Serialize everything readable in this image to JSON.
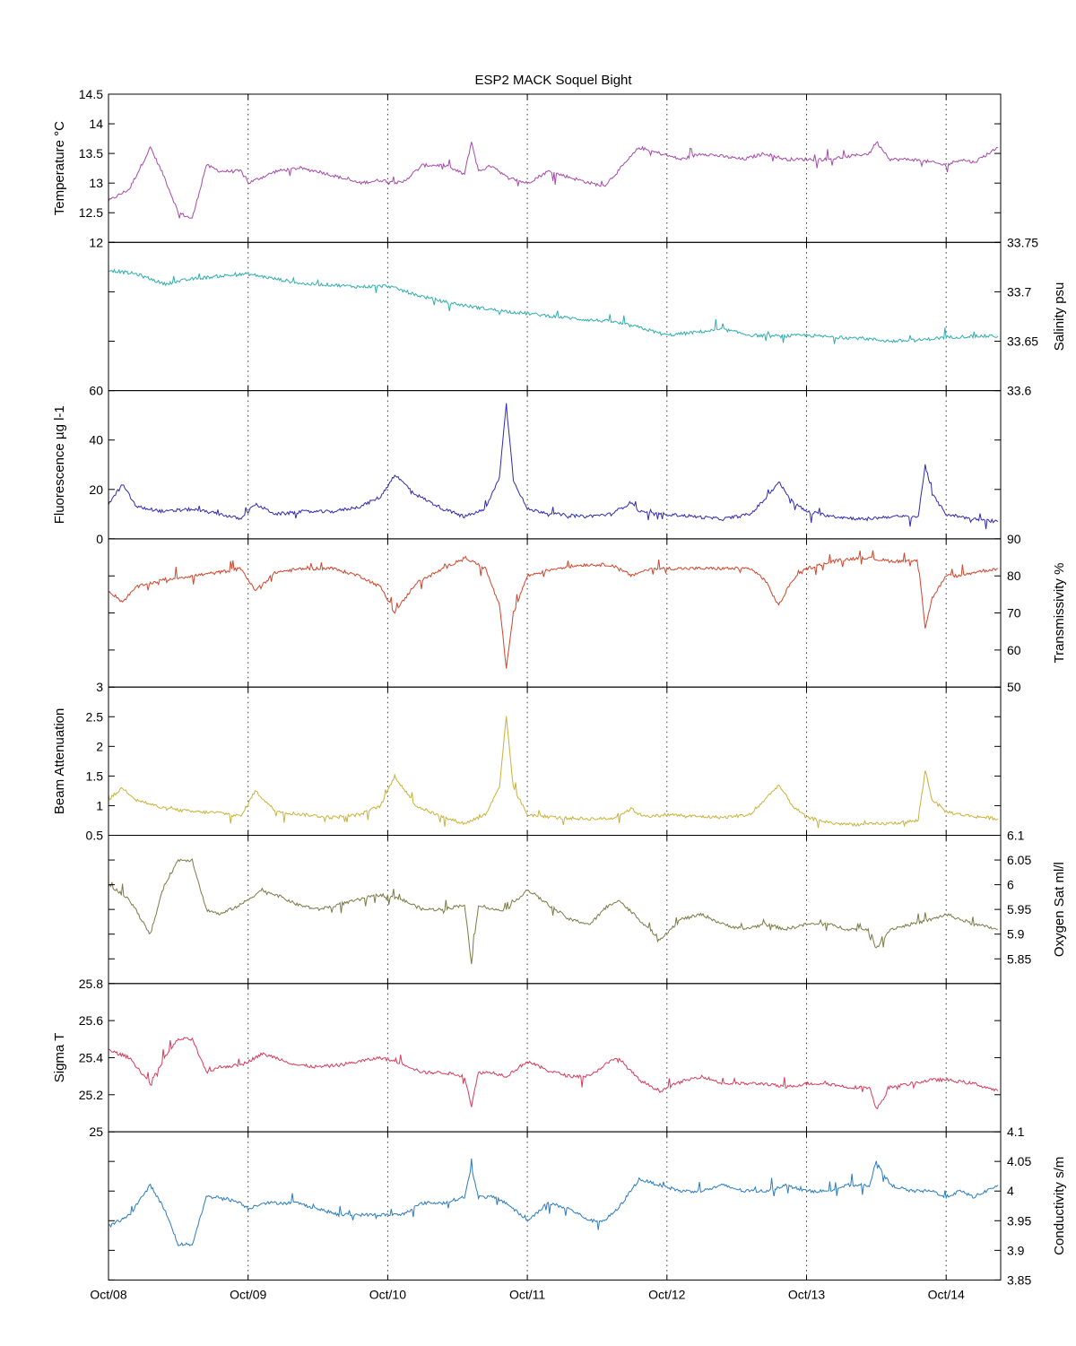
{
  "chart_data": {
    "type": "line",
    "title": "ESP2 MACK  Soquel Bight",
    "x_ticks": [
      "Oct/08",
      "Oct/09",
      "Oct/10",
      "Oct/11",
      "Oct/12",
      "Oct/13",
      "Oct/14"
    ],
    "x_range": [
      "Oct/08 00:00",
      "Oct/14 09:00"
    ],
    "grid": "vertical dotted at each day",
    "panels": [
      {
        "name": "Temperature",
        "ylabel": "Temperature °C",
        "axis_side": "left",
        "color": "#a54aa8",
        "ylim": [
          12,
          14.5
        ],
        "yticks": [
          "12",
          "12.5",
          "13",
          "13.5",
          "14",
          "14.5"
        ],
        "x": [
          0,
          0.15,
          0.3,
          0.4,
          0.5,
          0.6,
          0.7,
          0.8,
          0.95,
          1,
          1.1,
          1.2,
          1.35,
          1.5,
          1.65,
          1.8,
          1.95,
          2.1,
          2.25,
          2.4,
          2.55,
          2.6,
          2.65,
          2.75,
          2.85,
          3,
          3.15,
          3.3,
          3.45,
          3.55,
          3.65,
          3.8,
          3.95,
          4.1,
          4.25,
          4.4,
          4.55,
          4.7,
          4.85,
          5,
          5.15,
          5.3,
          5.45,
          5.5,
          5.6,
          5.75,
          5.9,
          6,
          6.1,
          6.2,
          6.37
        ],
        "values": [
          12.7,
          12.9,
          13.6,
          13.1,
          12.5,
          12.4,
          13.3,
          13.2,
          13.2,
          13.0,
          13.1,
          13.2,
          13.25,
          13.2,
          13.1,
          13.0,
          13.05,
          13.0,
          13.3,
          13.3,
          13.15,
          13.7,
          13.2,
          13.3,
          13.1,
          13.0,
          13.2,
          13.1,
          13.0,
          12.95,
          13.2,
          13.6,
          13.5,
          13.4,
          13.5,
          13.45,
          13.4,
          13.5,
          13.4,
          13.4,
          13.4,
          13.45,
          13.5,
          13.7,
          13.4,
          13.4,
          13.35,
          13.3,
          13.4,
          13.35,
          13.6
        ]
      },
      {
        "name": "Salinity",
        "ylabel": "Salinity psu",
        "axis_side": "right",
        "color": "#2fadad",
        "ylim": [
          33.6,
          33.75
        ],
        "yticks": [
          "33.6",
          "33.65",
          "33.7",
          "33.75"
        ],
        "x": [
          0,
          0.2,
          0.4,
          0.6,
          0.8,
          1,
          1.2,
          1.4,
          1.6,
          1.8,
          2,
          2.2,
          2.4,
          2.6,
          2.8,
          3,
          3.2,
          3.4,
          3.6,
          3.8,
          4,
          4.2,
          4.4,
          4.6,
          4.8,
          5,
          5.2,
          5.4,
          5.6,
          5.8,
          6,
          6.2,
          6.37
        ],
        "values": [
          33.722,
          33.718,
          33.708,
          33.713,
          33.716,
          33.718,
          33.713,
          33.708,
          33.707,
          33.705,
          33.706,
          33.697,
          33.69,
          33.685,
          33.681,
          33.678,
          33.675,
          33.672,
          33.67,
          33.664,
          33.656,
          33.659,
          33.662,
          33.656,
          33.655,
          33.656,
          33.654,
          33.653,
          33.65,
          33.651,
          33.654,
          33.655,
          33.655
        ]
      },
      {
        "name": "Fluorescence",
        "ylabel": "Fluorescence µg l-1",
        "axis_side": "left",
        "color": "#2f2ab0",
        "ylim": [
          0,
          60
        ],
        "yticks": [
          "0",
          "20",
          "40",
          "60"
        ],
        "x": [
          0,
          0.1,
          0.2,
          0.4,
          0.6,
          0.8,
          0.95,
          1.05,
          1.2,
          1.4,
          1.6,
          1.8,
          1.95,
          2.05,
          2.2,
          2.4,
          2.55,
          2.7,
          2.8,
          2.85,
          2.9,
          3,
          3.2,
          3.4,
          3.6,
          3.75,
          3.8,
          3.9,
          4,
          4.2,
          4.4,
          4.6,
          4.7,
          4.8,
          4.9,
          5,
          5.2,
          5.4,
          5.6,
          5.7,
          5.8,
          5.85,
          5.9,
          6,
          6.1,
          6.2,
          6.37
        ],
        "values": [
          14,
          22,
          13,
          11,
          12,
          10,
          8,
          14,
          10,
          11,
          11,
          13,
          17,
          26,
          18,
          12,
          9,
          12,
          25,
          55,
          24,
          12,
          10,
          9,
          10,
          15,
          11,
          10,
          10,
          9,
          8,
          10,
          16,
          23,
          15,
          11,
          9,
          8,
          9,
          9,
          9,
          30,
          18,
          10,
          9,
          8,
          7
        ]
      },
      {
        "name": "Transmissivity",
        "ylabel": "Transmissivity %",
        "axis_side": "right",
        "color": "#d2432a",
        "ylim": [
          50,
          90
        ],
        "yticks": [
          "50",
          "60",
          "70",
          "80",
          "90"
        ],
        "x": [
          0,
          0.1,
          0.2,
          0.4,
          0.6,
          0.8,
          0.95,
          1.05,
          1.2,
          1.4,
          1.6,
          1.8,
          1.95,
          2.05,
          2.2,
          2.4,
          2.55,
          2.7,
          2.8,
          2.85,
          2.9,
          3,
          3.2,
          3.4,
          3.6,
          3.75,
          3.8,
          3.9,
          4,
          4.2,
          4.4,
          4.6,
          4.7,
          4.8,
          4.9,
          5,
          5.2,
          5.4,
          5.6,
          5.7,
          5.8,
          5.85,
          5.9,
          6,
          6.1,
          6.2,
          6.37
        ],
        "values": [
          76,
          73,
          77,
          79,
          80,
          81,
          82,
          76,
          81,
          82,
          82,
          80,
          77,
          70,
          78,
          82,
          85,
          82,
          72,
          55,
          70,
          80,
          82,
          83,
          83,
          80,
          81,
          82,
          82,
          82,
          82,
          82,
          79,
          72,
          79,
          82,
          84,
          85,
          84,
          84,
          84,
          66,
          74,
          80,
          80,
          81,
          82
        ]
      },
      {
        "name": "Beam Attenuation",
        "ylabel": "Beam Attenuation",
        "axis_side": "left",
        "color": "#c9b23a",
        "ylim": [
          0.5,
          3
        ],
        "yticks": [
          "0.5",
          "1",
          "1.5",
          "2",
          "2.5",
          "3"
        ],
        "x": [
          0,
          0.1,
          0.2,
          0.4,
          0.6,
          0.8,
          0.95,
          1.05,
          1.2,
          1.4,
          1.6,
          1.8,
          1.95,
          2.05,
          2.2,
          2.4,
          2.55,
          2.7,
          2.8,
          2.85,
          2.9,
          3,
          3.2,
          3.4,
          3.6,
          3.75,
          3.8,
          3.9,
          4,
          4.2,
          4.4,
          4.6,
          4.7,
          4.8,
          4.9,
          5,
          5.2,
          5.4,
          5.6,
          5.7,
          5.8,
          5.85,
          5.9,
          6,
          6.1,
          6.2,
          6.37
        ],
        "values": [
          1.1,
          1.3,
          1.1,
          0.95,
          0.9,
          0.88,
          0.82,
          1.25,
          0.9,
          0.85,
          0.8,
          0.85,
          1.0,
          1.5,
          1.0,
          0.8,
          0.7,
          0.85,
          1.3,
          2.5,
          1.3,
          0.85,
          0.8,
          0.78,
          0.78,
          0.95,
          0.85,
          0.82,
          0.85,
          0.82,
          0.8,
          0.85,
          1.1,
          1.35,
          1.0,
          0.8,
          0.7,
          0.68,
          0.7,
          0.72,
          0.75,
          1.6,
          1.1,
          0.9,
          0.85,
          0.82,
          0.78
        ]
      },
      {
        "name": "Oxygen Sat",
        "ylabel": "Oxygen Sat ml/l",
        "axis_side": "right",
        "color": "#7b7a45",
        "ylim": [
          5.8,
          6.1
        ],
        "yticks": [
          "5.85",
          "5.9",
          "5.95",
          "6",
          "6.05",
          "6.1"
        ],
        "x": [
          0,
          0.15,
          0.3,
          0.4,
          0.5,
          0.6,
          0.7,
          0.8,
          0.95,
          1,
          1.1,
          1.2,
          1.35,
          1.5,
          1.65,
          1.8,
          1.95,
          2.1,
          2.25,
          2.4,
          2.55,
          2.6,
          2.65,
          2.75,
          2.85,
          3,
          3.15,
          3.3,
          3.45,
          3.55,
          3.65,
          3.8,
          3.95,
          4.1,
          4.25,
          4.4,
          4.55,
          4.7,
          4.85,
          5,
          5.15,
          5.3,
          5.45,
          5.5,
          5.6,
          5.75,
          5.9,
          6,
          6.1,
          6.2,
          6.37
        ],
        "values": [
          6.0,
          5.97,
          5.9,
          6.0,
          6.05,
          6.05,
          5.95,
          5.94,
          5.96,
          5.97,
          5.99,
          5.98,
          5.96,
          5.95,
          5.96,
          5.97,
          5.98,
          5.97,
          5.95,
          5.95,
          5.96,
          5.84,
          5.96,
          5.95,
          5.95,
          5.99,
          5.96,
          5.93,
          5.92,
          5.95,
          5.97,
          5.93,
          5.89,
          5.93,
          5.94,
          5.92,
          5.91,
          5.92,
          5.91,
          5.92,
          5.92,
          5.91,
          5.91,
          5.87,
          5.91,
          5.92,
          5.93,
          5.94,
          5.93,
          5.92,
          5.91
        ]
      },
      {
        "name": "Sigma T",
        "ylabel": "Sigma T",
        "axis_side": "left",
        "color": "#d83a5a",
        "ylim": [
          25,
          25.8
        ],
        "yticks": [
          "25",
          "25.2",
          "25.4",
          "25.6",
          "25.8"
        ],
        "x": [
          0,
          0.15,
          0.3,
          0.4,
          0.5,
          0.6,
          0.7,
          0.8,
          0.95,
          1,
          1.1,
          1.2,
          1.35,
          1.5,
          1.65,
          1.8,
          1.95,
          2.1,
          2.25,
          2.4,
          2.55,
          2.6,
          2.65,
          2.75,
          2.85,
          3,
          3.15,
          3.3,
          3.45,
          3.55,
          3.65,
          3.8,
          3.95,
          4.1,
          4.25,
          4.4,
          4.55,
          4.7,
          4.85,
          5,
          5.15,
          5.3,
          5.45,
          5.5,
          5.6,
          5.75,
          5.9,
          6,
          6.1,
          6.2,
          6.37
        ],
        "values": [
          25.44,
          25.4,
          25.26,
          25.4,
          25.5,
          25.5,
          25.32,
          25.35,
          25.36,
          25.38,
          25.42,
          25.4,
          25.36,
          25.35,
          25.36,
          25.38,
          25.4,
          25.37,
          25.32,
          25.32,
          25.3,
          25.14,
          25.32,
          25.32,
          25.3,
          25.38,
          25.33,
          25.3,
          25.3,
          25.36,
          25.4,
          25.28,
          25.22,
          25.27,
          25.3,
          25.26,
          25.26,
          25.26,
          25.24,
          25.26,
          25.26,
          25.24,
          25.24,
          25.12,
          25.24,
          25.26,
          25.28,
          25.28,
          25.27,
          25.26,
          25.22
        ]
      },
      {
        "name": "Conductivity",
        "ylabel": "Conductivity s/m",
        "axis_side": "right",
        "color": "#2b7bc0",
        "ylim": [
          3.85,
          4.1
        ],
        "yticks": [
          "3.85",
          "3.9",
          "3.95",
          "4",
          "4.05",
          "4.1"
        ],
        "x": [
          0,
          0.15,
          0.3,
          0.4,
          0.5,
          0.6,
          0.7,
          0.8,
          0.95,
          1,
          1.1,
          1.2,
          1.35,
          1.5,
          1.65,
          1.8,
          1.95,
          2.1,
          2.25,
          2.4,
          2.55,
          2.6,
          2.65,
          2.75,
          2.85,
          3,
          3.15,
          3.3,
          3.45,
          3.55,
          3.65,
          3.8,
          3.95,
          4.1,
          4.25,
          4.4,
          4.55,
          4.7,
          4.85,
          5,
          5.15,
          5.3,
          5.45,
          5.5,
          5.6,
          5.75,
          5.9,
          6,
          6.1,
          6.2,
          6.37
        ],
        "values": [
          3.94,
          3.96,
          4.01,
          3.97,
          3.91,
          3.91,
          3.99,
          3.99,
          3.98,
          3.97,
          3.98,
          3.98,
          3.98,
          3.97,
          3.96,
          3.96,
          3.96,
          3.96,
          3.98,
          3.98,
          3.99,
          4.04,
          3.99,
          3.99,
          3.98,
          3.95,
          3.98,
          3.97,
          3.95,
          3.95,
          3.97,
          4.02,
          4.01,
          4.0,
          4.0,
          4.01,
          4.0,
          4.0,
          4.01,
          4.0,
          4.0,
          4.01,
          4.01,
          4.05,
          4.01,
          4.0,
          4.0,
          3.99,
          4.0,
          3.99,
          4.01
        ]
      }
    ]
  }
}
